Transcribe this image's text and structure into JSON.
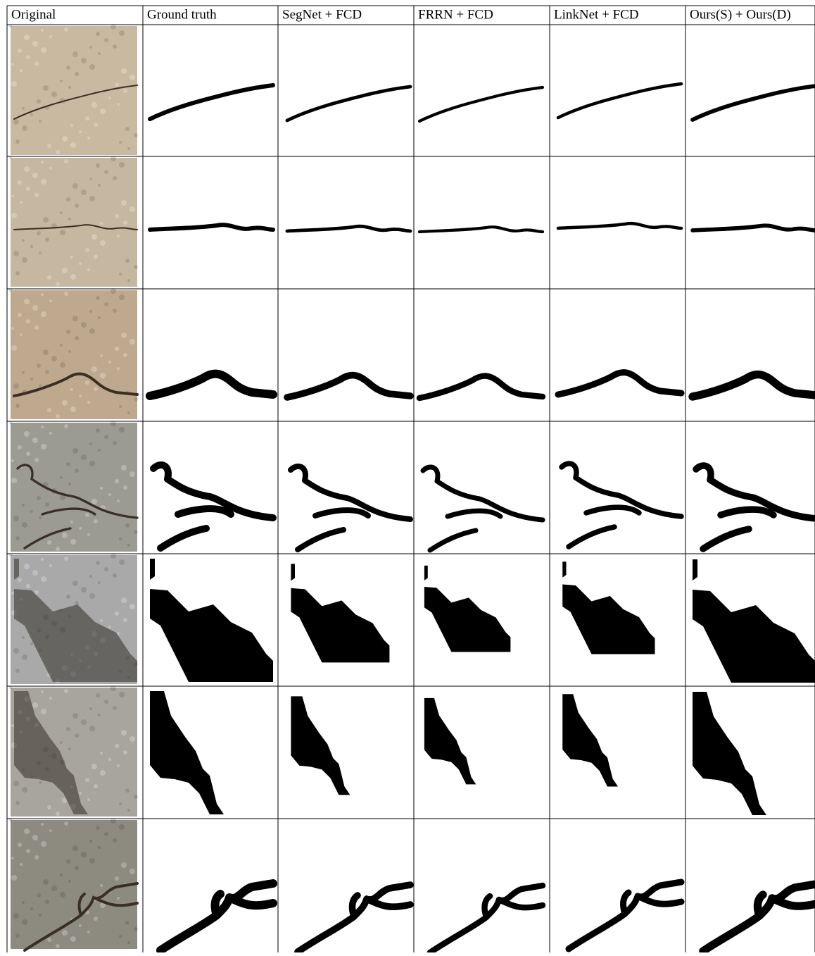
{
  "header": {
    "columns": [
      "Original",
      "Ground truth",
      "SegNet + FCD",
      "FRRN + FCD",
      "LinkNet + FCD",
      "Ours(S) + Ours(D)"
    ]
  }
}
